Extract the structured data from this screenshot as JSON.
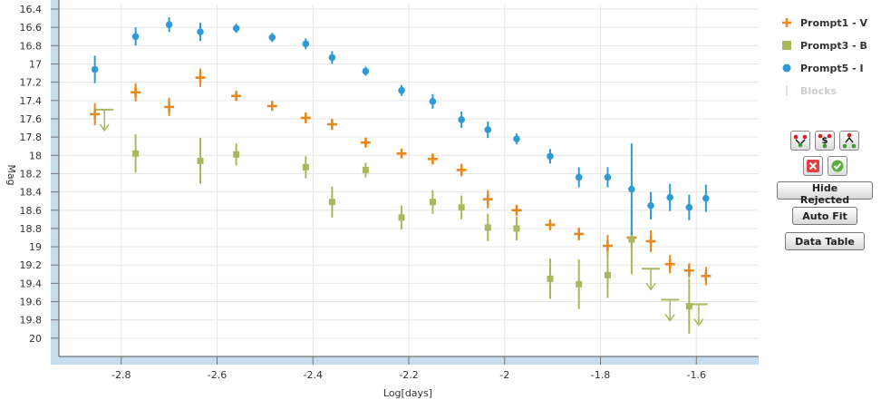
{
  "chart_data": {
    "type": "scatter",
    "xlabel": "Log[days]",
    "ylabel": "Mag",
    "xlim": [
      -2.93,
      -1.47
    ],
    "ylim": [
      20.2,
      16.35
    ],
    "y_inverted": true,
    "grid": true,
    "legend_position": "right",
    "x_ticks": [
      -2.8,
      -2.6,
      -2.4,
      -2.2,
      -2,
      -1.8,
      -1.6
    ],
    "x_tick_labels": [
      "-2.8",
      "-2.6",
      "-2.4",
      "-2.2",
      "-2",
      "-1.8",
      "-1.6"
    ],
    "y_ticks": [
      16.4,
      16.6,
      16.8,
      17,
      17.2,
      17.4,
      17.6,
      17.8,
      18,
      18.2,
      18.4,
      18.6,
      18.8,
      19,
      19.2,
      19.4,
      19.6,
      19.8,
      20
    ],
    "y_tick_labels": [
      "16.4",
      "16.6",
      "16.8",
      "17",
      "17.2",
      "17.4",
      "17.6",
      "17.8",
      "18",
      "18.2",
      "18.4",
      "18.6",
      "18.8",
      "19",
      "19.2",
      "19.4",
      "19.6",
      "19.8",
      "20"
    ],
    "series": [
      {
        "name": "Prompt1 - V",
        "marker": "plus",
        "color": "#e8891e",
        "points": [
          {
            "x": -2.855,
            "y": 17.55,
            "err": 0.12
          },
          {
            "x": -2.77,
            "y": 17.31,
            "err": 0.1
          },
          {
            "x": -2.7,
            "y": 17.47,
            "err": 0.1
          },
          {
            "x": -2.635,
            "y": 17.15,
            "err": 0.1
          },
          {
            "x": -2.56,
            "y": 17.35,
            "err": 0.05
          },
          {
            "x": -2.485,
            "y": 17.46,
            "err": 0.05
          },
          {
            "x": -2.415,
            "y": 17.59,
            "err": 0.06
          },
          {
            "x": -2.36,
            "y": 17.66,
            "err": 0.06
          },
          {
            "x": -2.29,
            "y": 17.86,
            "err": 0.04
          },
          {
            "x": -2.215,
            "y": 17.98,
            "err": 0.05
          },
          {
            "x": -2.15,
            "y": 18.04,
            "err": 0.06
          },
          {
            "x": -2.09,
            "y": 18.16,
            "err": 0.07
          },
          {
            "x": -2.035,
            "y": 18.48,
            "err": 0.1
          },
          {
            "x": -1.975,
            "y": 18.6,
            "err": 0.06
          },
          {
            "x": -1.905,
            "y": 18.76,
            "err": 0.06
          },
          {
            "x": -1.845,
            "y": 18.86,
            "err": 0.07
          },
          {
            "x": -1.785,
            "y": 18.99,
            "err": 0.12
          },
          {
            "x": -1.735,
            "y": 18.9,
            "err": 0.12
          },
          {
            "x": -1.695,
            "y": 18.94,
            "err": 0.12
          },
          {
            "x": -1.655,
            "y": 19.19,
            "err": 0.1
          },
          {
            "x": -1.615,
            "y": 19.26,
            "err": 0.08
          },
          {
            "x": -1.58,
            "y": 19.32,
            "err": 0.1
          }
        ]
      },
      {
        "name": "Prompt3 - B",
        "marker": "square",
        "color": "#a8b85a",
        "points": [
          {
            "x": -2.77,
            "y": 17.98,
            "err": 0.21
          },
          {
            "x": -2.635,
            "y": 18.06,
            "err": 0.25
          },
          {
            "x": -2.56,
            "y": 17.99,
            "err": 0.12
          },
          {
            "x": -2.415,
            "y": 18.13,
            "err": 0.12
          },
          {
            "x": -2.36,
            "y": 18.51,
            "err": 0.17
          },
          {
            "x": -2.29,
            "y": 18.16,
            "err": 0.08
          },
          {
            "x": -2.215,
            "y": 18.68,
            "err": 0.13
          },
          {
            "x": -2.15,
            "y": 18.51,
            "err": 0.13
          },
          {
            "x": -2.09,
            "y": 18.57,
            "err": 0.13
          },
          {
            "x": -2.035,
            "y": 18.79,
            "err": 0.15
          },
          {
            "x": -1.975,
            "y": 18.8,
            "err": 0.13
          },
          {
            "x": -1.905,
            "y": 19.35,
            "err": 0.22
          },
          {
            "x": -1.845,
            "y": 19.41,
            "err": 0.27
          },
          {
            "x": -1.785,
            "y": 19.31,
            "err": 0.25
          },
          {
            "x": -1.735,
            "y": 18.92,
            "err": 0.38
          },
          {
            "x": -1.615,
            "y": 19.65,
            "err": 0.3
          }
        ],
        "upper_limits": [
          {
            "x": -2.835,
            "y": 17.5
          },
          {
            "x": -1.695,
            "y": 19.24
          },
          {
            "x": -1.655,
            "y": 19.58
          },
          {
            "x": -1.595,
            "y": 19.63
          }
        ]
      },
      {
        "name": "Prompt5 - I",
        "marker": "circle",
        "color": "#2e9bd6",
        "points": [
          {
            "x": -2.855,
            "y": 17.06,
            "err": 0.15
          },
          {
            "x": -2.77,
            "y": 16.7,
            "err": 0.1
          },
          {
            "x": -2.7,
            "y": 16.57,
            "err": 0.08
          },
          {
            "x": -2.635,
            "y": 16.65,
            "err": 0.1
          },
          {
            "x": -2.56,
            "y": 16.61,
            "err": 0.05
          },
          {
            "x": -2.485,
            "y": 16.71,
            "err": 0.05
          },
          {
            "x": -2.415,
            "y": 16.78,
            "err": 0.06
          },
          {
            "x": -2.36,
            "y": 16.93,
            "err": 0.07
          },
          {
            "x": -2.29,
            "y": 17.08,
            "err": 0.05
          },
          {
            "x": -2.215,
            "y": 17.29,
            "err": 0.06
          },
          {
            "x": -2.15,
            "y": 17.41,
            "err": 0.08
          },
          {
            "x": -2.09,
            "y": 17.61,
            "err": 0.09
          },
          {
            "x": -2.035,
            "y": 17.72,
            "err": 0.09
          },
          {
            "x": -1.975,
            "y": 17.82,
            "err": 0.06
          },
          {
            "x": -1.905,
            "y": 18.01,
            "err": 0.08
          },
          {
            "x": -1.845,
            "y": 18.24,
            "err": 0.11
          },
          {
            "x": -1.785,
            "y": 18.24,
            "err": 0.11
          },
          {
            "x": -1.735,
            "y": 18.37,
            "err": 0.5
          },
          {
            "x": -1.695,
            "y": 18.55,
            "err": 0.15
          },
          {
            "x": -1.655,
            "y": 18.46,
            "err": 0.15
          },
          {
            "x": -1.615,
            "y": 18.57,
            "err": 0.14
          },
          {
            "x": -1.58,
            "y": 18.47,
            "err": 0.15
          }
        ]
      },
      {
        "name": "Blocks",
        "marker": "line",
        "color": "#d8d8d8",
        "muted": true,
        "points": []
      }
    ]
  },
  "colors": {
    "frame": "#c6dcef",
    "grid": "#e6e6e6",
    "axis": "#555555",
    "reject": "#e02020",
    "accept": "#4aa02c"
  },
  "toolbar": {
    "icons": [
      "outlier-spread-icon",
      "dollar-select-icon",
      "peak-shape-icon"
    ],
    "reject_icon": "reject-x-icon",
    "accept_icon": "accept-check-icon",
    "hide_rejected_label": "Hide Rejected",
    "auto_fit_label": "Auto Fit",
    "data_table_label": "Data Table"
  }
}
